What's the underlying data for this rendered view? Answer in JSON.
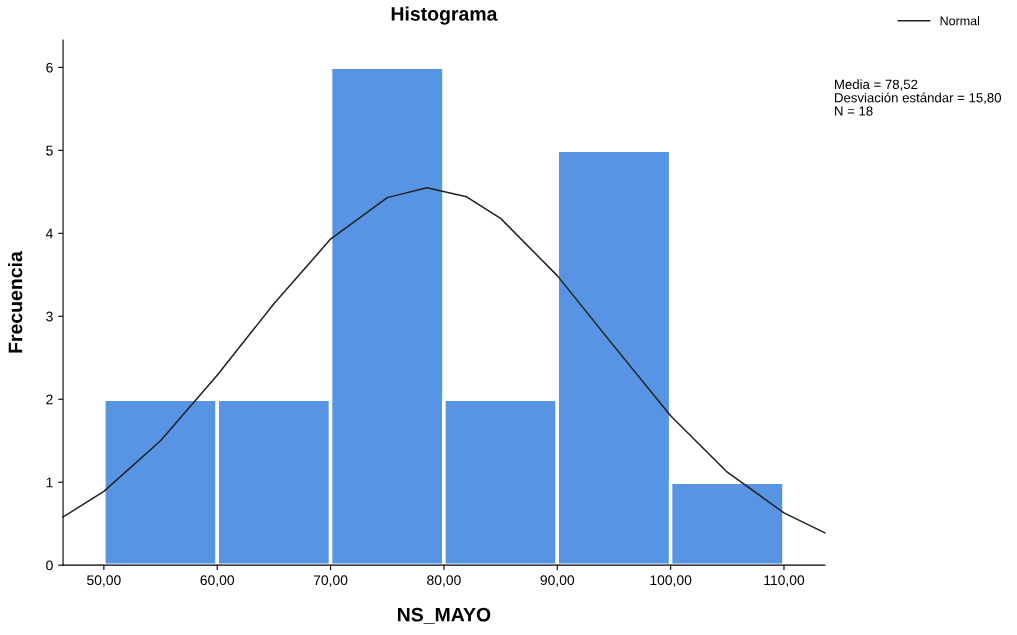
{
  "chart_data": {
    "type": "histogram",
    "title": "Histograma",
    "xlabel": "NS_MAYO",
    "ylabel": "Frecuencia",
    "bins": [
      50,
      60,
      70,
      80,
      90,
      100,
      110
    ],
    "values": [
      2,
      2,
      6,
      2,
      5,
      1
    ],
    "color": "#5794e4",
    "series": [
      {
        "name": "Normal",
        "type": "line",
        "color": "#222222",
        "x": [
          46.4,
          50,
          55,
          60,
          65,
          70,
          75,
          78.5,
          82,
          85,
          90,
          95,
          100,
          105,
          110,
          113.6
        ],
        "values": [
          0.58,
          0.89,
          1.5,
          2.29,
          3.15,
          3.93,
          4.43,
          4.55,
          4.44,
          4.18,
          3.49,
          2.64,
          1.8,
          1.12,
          0.63,
          0.39
        ]
      }
    ],
    "annotations": [
      "Media = 78,52",
      "Desviación estándar = 15,80",
      "N = 18"
    ],
    "xlim": [
      46.4,
      113.6
    ],
    "ylim": [
      0,
      6.33
    ],
    "xticks": [
      {
        "value": 50,
        "label": "50,00"
      },
      {
        "value": 60,
        "label": "60,00"
      },
      {
        "value": 70,
        "label": "70,00"
      },
      {
        "value": 80,
        "label": "80,00"
      },
      {
        "value": 90,
        "label": "90,00"
      },
      {
        "value": 100,
        "label": "100,00"
      },
      {
        "value": 110,
        "label": "110,00"
      }
    ],
    "yticks": [
      0,
      1,
      2,
      3,
      4,
      5,
      6
    ],
    "grid": false,
    "legend": "top right"
  }
}
